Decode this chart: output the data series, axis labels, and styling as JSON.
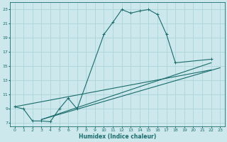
{
  "xlabel": "Humidex (Indice chaleur)",
  "ylabel": "",
  "bg_color": "#cce8ec",
  "line_color": "#1a6b6b",
  "grid_color": "#b0d8dc",
  "xlim": [
    -0.5,
    23.5
  ],
  "ylim": [
    6.5,
    24
  ],
  "xticks": [
    0,
    1,
    2,
    3,
    4,
    5,
    6,
    7,
    8,
    9,
    10,
    11,
    12,
    13,
    14,
    15,
    16,
    17,
    18,
    19,
    20,
    21,
    22,
    23
  ],
  "yticks": [
    7,
    9,
    11,
    13,
    15,
    17,
    19,
    21,
    23
  ],
  "curve1_x": [
    0,
    1,
    2,
    3,
    4,
    5,
    6,
    7,
    10,
    11,
    12,
    13,
    14,
    15,
    16,
    17,
    18,
    22
  ],
  "curve1_y": [
    9.3,
    9.0,
    7.3,
    7.3,
    7.2,
    9.0,
    10.5,
    9.0,
    19.5,
    21.2,
    23.0,
    22.5,
    22.8,
    23.0,
    22.3,
    19.5,
    15.5,
    16.0
  ],
  "curve2_x": [
    3,
    22
  ],
  "curve2_y": [
    7.5,
    15.5
  ],
  "curve3_x": [
    3,
    23
  ],
  "curve3_y": [
    7.5,
    14.8
  ],
  "curve4_x": [
    0,
    22
  ],
  "curve4_y": [
    9.3,
    14.5
  ],
  "figsize": [
    3.2,
    2.0
  ],
  "dpi": 100
}
